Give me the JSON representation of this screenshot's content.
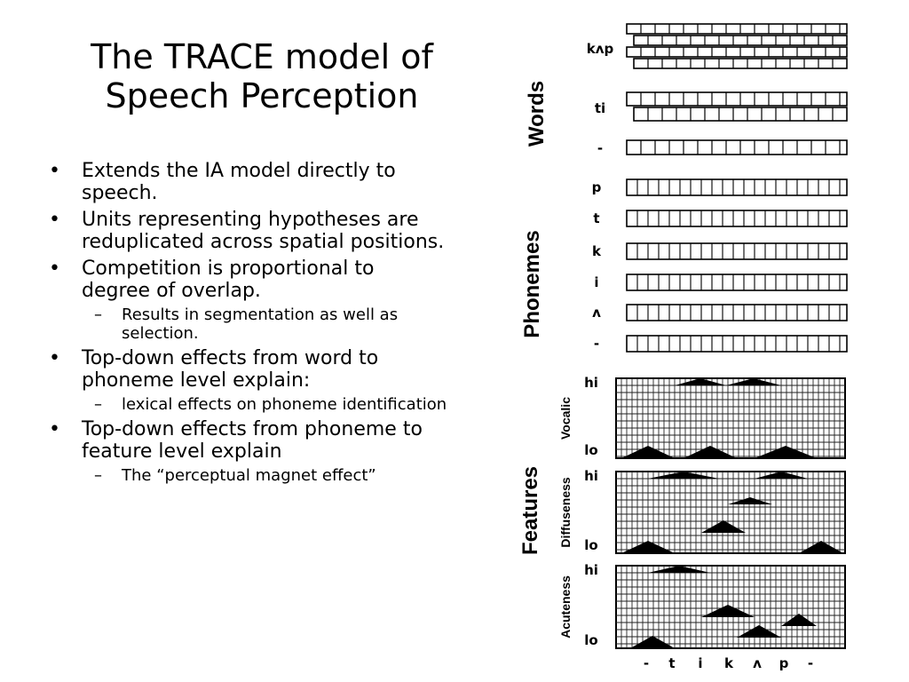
{
  "title": {
    "line1": "The TRACE model of",
    "line2": "Speech Perception"
  },
  "bullets": [
    {
      "text": "Extends the IA model directly to speech.",
      "subs": []
    },
    {
      "text": "Units representing hypotheses are reduplicated across spatial positions.",
      "subs": []
    },
    {
      "text": "Competition is proportional to degree of overlap.",
      "subs": [
        "Results in segmentation as well as selection."
      ]
    },
    {
      "text": "Top-down effects from word to phoneme level explain:",
      "subs": [
        "lexical effects on phoneme identification"
      ]
    },
    {
      "text": "Top-down effects from phoneme to feature level explain",
      "subs": [
        "The “perceptual magnet effect”"
      ]
    }
  ],
  "markers": {
    "bullet": "•",
    "sub": "–"
  },
  "figure": {
    "group_labels": {
      "words": "Words",
      "phonemes": "Phonemes",
      "features": "Features"
    },
    "word_rows": [
      "kʌp",
      "ti",
      "-"
    ],
    "phoneme_rows": [
      "p",
      "t",
      "k",
      "i",
      "ʌ",
      "-"
    ],
    "feature_panels": [
      "Vocalic",
      "Diffuseness",
      "Acuteness"
    ],
    "feature_scale": {
      "high": "hi",
      "low": "lo"
    },
    "bottom_axis": [
      "-",
      "t",
      "i",
      "k",
      "ʌ",
      "p",
      "-"
    ]
  }
}
